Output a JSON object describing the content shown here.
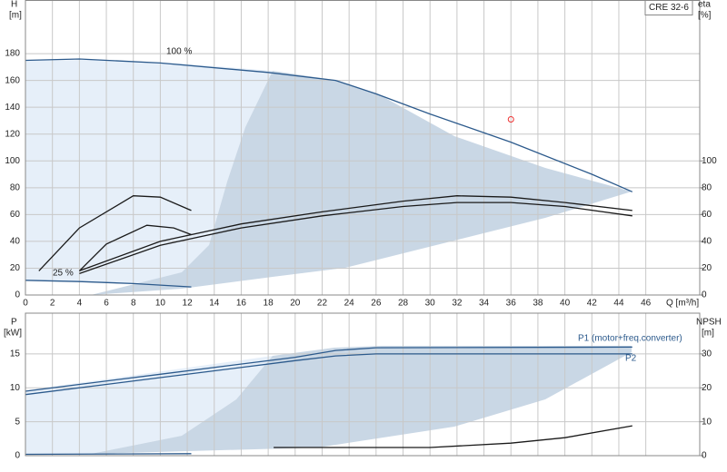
{
  "chart_data": [
    {
      "type": "line",
      "title": "CRE 32-6",
      "ylabel": "H",
      "ylabel_unit": "[m]",
      "y2label": "eta",
      "y2label_unit": "[%]",
      "xlabel": "Q [m³/h]",
      "annotations": [
        "100 %",
        "25 %"
      ],
      "xlim": [
        0,
        50
      ],
      "xticks": [
        0,
        2,
        4,
        6,
        8,
        10,
        12,
        14,
        16,
        18,
        20,
        22,
        24,
        26,
        28,
        30,
        32,
        34,
        36,
        38,
        40,
        42,
        44,
        46
      ],
      "ylim": [
        0,
        220
      ],
      "yticks": [
        0,
        20,
        40,
        60,
        80,
        100,
        120,
        140,
        160,
        180
      ],
      "y2lim": [
        0,
        220
      ],
      "y2ticks": [
        0,
        20,
        40,
        60,
        80,
        100
      ],
      "grid": true,
      "series": [
        {
          "color": "#2c5a8c",
          "x": [
            0,
            4,
            10,
            18,
            23,
            26,
            30,
            36,
            42,
            45
          ],
          "values": [
            175,
            176,
            173,
            166,
            160,
            150,
            135,
            114,
            90,
            77
          ]
        },
        {
          "color": "#2c5a8c",
          "x": [
            0,
            4,
            8,
            12.3
          ],
          "values": [
            11,
            10,
            8.5,
            6
          ]
        },
        {
          "color": "#1a1a1a",
          "axis": "y2",
          "x": [
            4,
            10,
            16,
            22,
            28,
            32,
            36,
            40,
            45
          ],
          "values": [
            18,
            40,
            53,
            62,
            70,
            74,
            73,
            69,
            63
          ]
        },
        {
          "color": "#1a1a1a",
          "axis": "y2",
          "x": [
            4,
            10,
            16,
            22,
            28,
            32,
            36,
            40,
            45
          ],
          "values": [
            16,
            37,
            50,
            59,
            66,
            69,
            69,
            66,
            59
          ]
        },
        {
          "color": "#1a1a1a",
          "axis": "y2",
          "x": [
            1,
            4,
            8,
            10,
            12.3
          ],
          "values": [
            18,
            50,
            74,
            73,
            63
          ]
        },
        {
          "color": "#1a1a1a",
          "axis": "y2",
          "x": [
            4,
            6,
            9,
            11,
            12.3
          ],
          "values": [
            18,
            38,
            52,
            50,
            45
          ]
        }
      ],
      "points": {
        "color": "#e33",
        "x": [
          36
        ],
        "values": [
          131
        ]
      }
    },
    {
      "type": "line",
      "ylabel": "P",
      "ylabel_unit": "[kW]",
      "y2label": "NPSH",
      "y2label_unit": "[m]",
      "xlim": [
        0,
        50
      ],
      "ylim": [
        0,
        21
      ],
      "yticks": [
        0,
        5,
        10,
        15
      ],
      "y2lim": [
        0,
        42
      ],
      "y2ticks": [
        0,
        10,
        20,
        30
      ],
      "grid": true,
      "series": [
        {
          "name": "P1 (motor+freq.converter)",
          "color": "#2c5a8c",
          "x": [
            0,
            10,
            20,
            23,
            26,
            45
          ],
          "values": [
            9.5,
            12,
            14.5,
            15.5,
            15.9,
            16
          ]
        },
        {
          "name": "P2",
          "color": "#2c5a8c",
          "x": [
            0,
            10,
            20,
            23,
            26,
            45
          ],
          "values": [
            9,
            11.5,
            14,
            14.7,
            15,
            15
          ]
        },
        {
          "color": "#2c5a8c",
          "x": [
            0,
            12.3
          ],
          "values": [
            0.2,
            0.3
          ]
        },
        {
          "color": "#1a1a1a",
          "axis": "y2",
          "x": [
            18.4,
            30,
            36,
            40,
            45
          ],
          "values": [
            2.4,
            2.4,
            3.7,
            5.3,
            8.8
          ]
        }
      ]
    }
  ]
}
